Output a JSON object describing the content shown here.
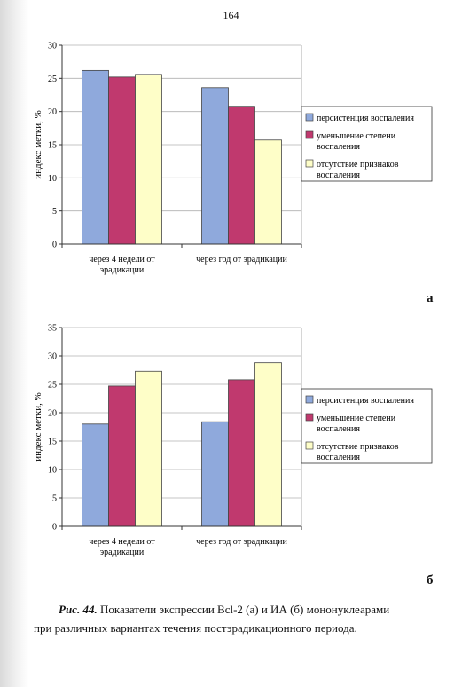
{
  "page_number": "164",
  "panel_letters": [
    "а",
    "б"
  ],
  "caption": {
    "label": "Рис. 44.",
    "text_line1": "Показатели экспрессии Bcl-2 (а) и ИА (б) мононуклеарами",
    "text_line2": "при различных вариантах течения постэрадикационного периода."
  },
  "colors": {
    "persistence": "#8fa9dc",
    "decrease": "#c0396e",
    "absence": "#fefec8"
  },
  "chart_data": [
    {
      "type": "bar",
      "ylabel": "индекс метки, %",
      "ylim": [
        0,
        30
      ],
      "yticks": [
        0,
        5,
        10,
        15,
        20,
        25,
        30
      ],
      "categories": [
        [
          "через 4 недели от",
          "эрадикации"
        ],
        [
          "через год от эрадикации"
        ]
      ],
      "series": [
        {
          "name": [
            "персистенция воспаления"
          ],
          "values": [
            26.2,
            23.6
          ]
        },
        {
          "name": [
            "уменьшение степени",
            "воспаления"
          ],
          "values": [
            25.2,
            20.8
          ]
        },
        {
          "name": [
            "отсутствие признаков",
            "воспаления"
          ],
          "values": [
            25.6,
            15.7
          ]
        }
      ],
      "grid": true,
      "legend": "right"
    },
    {
      "type": "bar",
      "ylabel": "индекс метки, %",
      "ylim": [
        0,
        35
      ],
      "yticks": [
        0,
        5,
        10,
        15,
        20,
        25,
        30,
        35
      ],
      "categories": [
        [
          "через 4 недели от",
          "эрадикации"
        ],
        [
          "через год от эрадикации"
        ]
      ],
      "series": [
        {
          "name": [
            "персистенция воспаления"
          ],
          "values": [
            18.0,
            18.4
          ]
        },
        {
          "name": [
            "уменьшение степени",
            "воспаления"
          ],
          "values": [
            24.7,
            25.8
          ]
        },
        {
          "name": [
            "отсутствие признаков",
            "воспаления"
          ],
          "values": [
            27.3,
            28.8
          ]
        }
      ],
      "grid": true,
      "legend": "right"
    }
  ]
}
